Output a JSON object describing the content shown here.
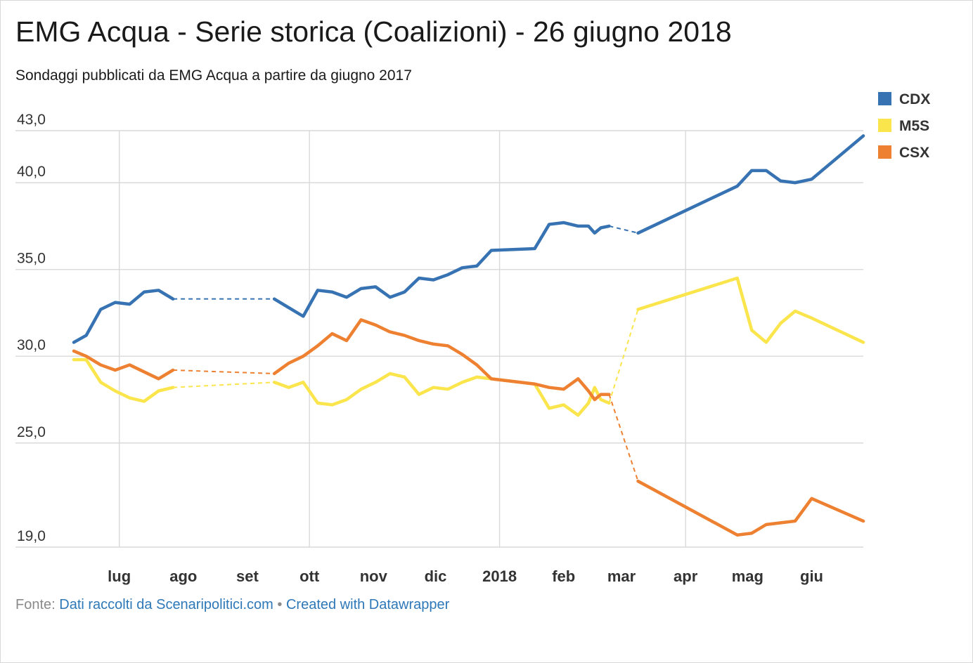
{
  "title": "EMG Acqua - Serie storica (Coalizioni) - 26 giugno 2018",
  "subtitle": "Sondaggi pubblicati da EMG Acqua a partire da giugno 2017",
  "footer": {
    "prefix": "Fonte:",
    "source_link": "Dati raccolti da Scenaripolitici.com",
    "separator": "•",
    "credit_link": "Created with Datawrapper"
  },
  "colors": {
    "CDX": "#3773b2",
    "M5S": "#fbe54c",
    "CSX": "#ee8031",
    "grid": "#d9d9d9"
  },
  "chart_data": {
    "type": "line",
    "title": "EMG Acqua - Serie storica (Coalizioni) - 26 giugno 2018",
    "subtitle": "Sondaggi pubblicati da EMG Acqua a partire da giugno 2017",
    "y_ticks": [
      {
        "value": 19,
        "label": "19,0"
      },
      {
        "value": 25,
        "label": "25,0"
      },
      {
        "value": 30,
        "label": "30,0"
      },
      {
        "value": 35,
        "label": "35,0"
      },
      {
        "value": 40,
        "label": "40,0"
      },
      {
        "value": 43,
        "label": "43,0"
      }
    ],
    "ylim": [
      19,
      43
    ],
    "xlim": [
      "2017-06-09",
      "2018-06-26"
    ],
    "x_ticks": [
      {
        "date": "2017-07-01",
        "label": "lug",
        "line": true
      },
      {
        "date": "2017-08-01",
        "label": "ago",
        "line": false
      },
      {
        "date": "2017-09-01",
        "label": "set",
        "line": false
      },
      {
        "date": "2017-10-01",
        "label": "ott",
        "line": true
      },
      {
        "date": "2017-11-01",
        "label": "nov",
        "line": false
      },
      {
        "date": "2017-12-01",
        "label": "dic",
        "line": false
      },
      {
        "date": "2018-01-01",
        "label": "2018",
        "line": true
      },
      {
        "date": "2018-02-01",
        "label": "feb",
        "line": false
      },
      {
        "date": "2018-03-01",
        "label": "mar",
        "line": false
      },
      {
        "date": "2018-04-01",
        "label": "apr",
        "line": true
      },
      {
        "date": "2018-05-01",
        "label": "mag",
        "line": false
      },
      {
        "date": "2018-06-01",
        "label": "giu",
        "line": false
      }
    ],
    "legend": {
      "position": "top-right",
      "entries": [
        "CDX",
        "M5S",
        "CSX"
      ]
    },
    "grid": true,
    "series": [
      {
        "name": "CDX",
        "points": [
          [
            "2017-06-09",
            30.8
          ],
          [
            "2017-06-15",
            31.2
          ],
          [
            "2017-06-22",
            32.7
          ],
          [
            "2017-06-29",
            33.1
          ],
          [
            "2017-07-06",
            33.0
          ],
          [
            "2017-07-13",
            33.7
          ],
          [
            "2017-07-20",
            33.8
          ],
          [
            "2017-07-27",
            33.3
          ],
          [
            "2017-09-14",
            33.3
          ],
          [
            "2017-09-21",
            32.8
          ],
          [
            "2017-09-28",
            32.3
          ],
          [
            "2017-10-05",
            33.8
          ],
          [
            "2017-10-12",
            33.7
          ],
          [
            "2017-10-19",
            33.4
          ],
          [
            "2017-10-26",
            33.9
          ],
          [
            "2017-11-02",
            34.0
          ],
          [
            "2017-11-09",
            33.4
          ],
          [
            "2017-11-16",
            33.7
          ],
          [
            "2017-11-23",
            34.5
          ],
          [
            "2017-11-30",
            34.4
          ],
          [
            "2017-12-07",
            34.7
          ],
          [
            "2017-12-14",
            35.1
          ],
          [
            "2017-12-21",
            35.2
          ],
          [
            "2017-12-28",
            36.1
          ],
          [
            "2018-01-18",
            36.2
          ],
          [
            "2018-01-25",
            37.6
          ],
          [
            "2018-02-01",
            37.7
          ],
          [
            "2018-02-08",
            37.5
          ],
          [
            "2018-02-13",
            37.5
          ],
          [
            "2018-02-16",
            37.1
          ],
          [
            "2018-02-19",
            37.4
          ],
          [
            "2018-02-23",
            37.5
          ],
          [
            "2018-03-09",
            37.1
          ],
          [
            "2018-04-26",
            39.8
          ],
          [
            "2018-05-03",
            40.7
          ],
          [
            "2018-05-10",
            40.7
          ],
          [
            "2018-05-17",
            40.1
          ],
          [
            "2018-05-24",
            40.0
          ],
          [
            "2018-06-01",
            40.2
          ],
          [
            "2018-06-26",
            42.7
          ]
        ],
        "dashed_after_index": [
          7,
          31
        ]
      },
      {
        "name": "M5S",
        "points": [
          [
            "2017-06-09",
            29.8
          ],
          [
            "2017-06-15",
            29.8
          ],
          [
            "2017-06-22",
            28.5
          ],
          [
            "2017-06-29",
            28.0
          ],
          [
            "2017-07-06",
            27.6
          ],
          [
            "2017-07-13",
            27.4
          ],
          [
            "2017-07-20",
            28.0
          ],
          [
            "2017-07-27",
            28.2
          ],
          [
            "2017-09-14",
            28.5
          ],
          [
            "2017-09-21",
            28.2
          ],
          [
            "2017-09-28",
            28.5
          ],
          [
            "2017-10-05",
            27.3
          ],
          [
            "2017-10-12",
            27.2
          ],
          [
            "2017-10-19",
            27.5
          ],
          [
            "2017-10-26",
            28.1
          ],
          [
            "2017-11-02",
            28.5
          ],
          [
            "2017-11-09",
            29.0
          ],
          [
            "2017-11-16",
            28.8
          ],
          [
            "2017-11-23",
            27.8
          ],
          [
            "2017-11-30",
            28.2
          ],
          [
            "2017-12-07",
            28.1
          ],
          [
            "2017-12-14",
            28.5
          ],
          [
            "2017-12-21",
            28.8
          ],
          [
            "2017-12-28",
            28.7
          ],
          [
            "2018-01-18",
            28.4
          ],
          [
            "2018-01-25",
            27.0
          ],
          [
            "2018-02-01",
            27.2
          ],
          [
            "2018-02-08",
            26.6
          ],
          [
            "2018-02-13",
            27.3
          ],
          [
            "2018-02-16",
            28.2
          ],
          [
            "2018-02-19",
            27.5
          ],
          [
            "2018-02-23",
            27.3
          ],
          [
            "2018-03-09",
            32.7
          ],
          [
            "2018-04-26",
            34.5
          ],
          [
            "2018-05-03",
            31.5
          ],
          [
            "2018-05-10",
            30.8
          ],
          [
            "2018-05-17",
            31.9
          ],
          [
            "2018-05-24",
            32.6
          ],
          [
            "2018-06-01",
            32.2
          ],
          [
            "2018-06-26",
            30.8
          ]
        ],
        "dashed_after_index": [
          7,
          31
        ]
      },
      {
        "name": "CSX",
        "points": [
          [
            "2017-06-09",
            30.3
          ],
          [
            "2017-06-15",
            30.0
          ],
          [
            "2017-06-22",
            29.5
          ],
          [
            "2017-06-29",
            29.2
          ],
          [
            "2017-07-06",
            29.5
          ],
          [
            "2017-07-13",
            29.1
          ],
          [
            "2017-07-20",
            28.7
          ],
          [
            "2017-07-27",
            29.2
          ],
          [
            "2017-09-14",
            29.0
          ],
          [
            "2017-09-21",
            29.6
          ],
          [
            "2017-09-28",
            30.0
          ],
          [
            "2017-10-05",
            30.6
          ],
          [
            "2017-10-12",
            31.3
          ],
          [
            "2017-10-19",
            30.9
          ],
          [
            "2017-10-26",
            32.1
          ],
          [
            "2017-11-02",
            31.8
          ],
          [
            "2017-11-09",
            31.4
          ],
          [
            "2017-11-16",
            31.2
          ],
          [
            "2017-11-23",
            30.9
          ],
          [
            "2017-11-30",
            30.7
          ],
          [
            "2017-12-07",
            30.6
          ],
          [
            "2017-12-14",
            30.1
          ],
          [
            "2017-12-21",
            29.5
          ],
          [
            "2017-12-28",
            28.7
          ],
          [
            "2018-01-18",
            28.4
          ],
          [
            "2018-01-25",
            28.2
          ],
          [
            "2018-02-01",
            28.1
          ],
          [
            "2018-02-08",
            28.7
          ],
          [
            "2018-02-13",
            28.0
          ],
          [
            "2018-02-16",
            27.5
          ],
          [
            "2018-02-19",
            27.8
          ],
          [
            "2018-02-23",
            27.8
          ],
          [
            "2018-03-09",
            22.8
          ],
          [
            "2018-04-26",
            19.7
          ],
          [
            "2018-05-03",
            19.8
          ],
          [
            "2018-05-10",
            20.3
          ],
          [
            "2018-05-17",
            20.4
          ],
          [
            "2018-05-24",
            20.5
          ],
          [
            "2018-06-01",
            21.8
          ],
          [
            "2018-06-26",
            20.5
          ]
        ],
        "dashed_after_index": [
          7,
          31
        ]
      }
    ]
  }
}
